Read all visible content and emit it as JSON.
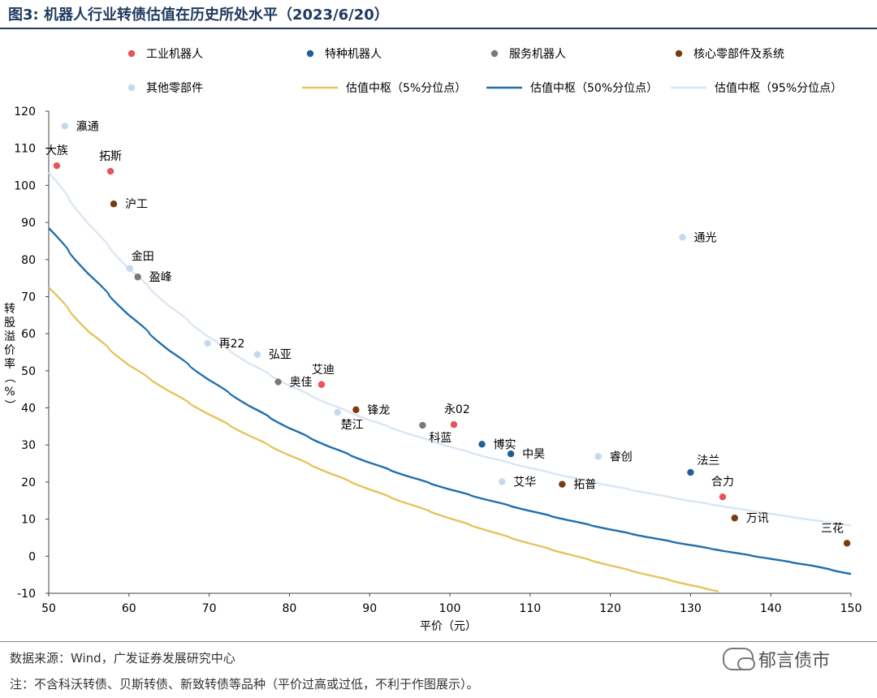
{
  "header": {
    "title": "图3:  机器人行业转债估值在历史所处水平（2023/6/20）"
  },
  "footer": {
    "source": "数据来源：Wind，广发证券发展研究中心",
    "note": "注：不含科沃转债、贝斯转债、新致转债等品种（平价过高或过低，不利于作图展示）。",
    "watermark": "郁言债市"
  },
  "chart_data": {
    "type": "scatter",
    "xlabel": "平价（元）",
    "ylabel": "转股溢价率（%）",
    "xlim": [
      50,
      150
    ],
    "ylim": [
      -10,
      120
    ],
    "xticks": [
      50,
      60,
      70,
      80,
      90,
      100,
      110,
      120,
      130,
      140,
      150
    ],
    "yticks": [
      -10,
      0,
      10,
      20,
      30,
      40,
      50,
      60,
      70,
      80,
      90,
      100,
      110,
      120
    ],
    "grid": false,
    "legend_position": "top",
    "categories": [
      {
        "name": "工业机器人",
        "color": "#e8545a"
      },
      {
        "name": "特种机器人",
        "color": "#1f5f99"
      },
      {
        "name": "服务机器人",
        "color": "#7a7a7a"
      },
      {
        "name": "核心零部件及系统",
        "color": "#7b3a10"
      },
      {
        "name": "其他零部件",
        "color": "#c5d9ee"
      }
    ],
    "curves": [
      {
        "name": "估值中枢（5%分位点）",
        "color": "#e6c35c",
        "x": [
          50,
          55,
          60,
          65,
          70,
          75,
          80,
          85,
          90,
          95,
          100,
          105,
          110,
          115,
          120,
          125,
          130,
          133.5
        ],
        "y": [
          72.5,
          60.5,
          51.5,
          44.5,
          38.2,
          32.5,
          27.2,
          22.4,
          18,
          14,
          10.2,
          6.7,
          3.4,
          0.4,
          -2.5,
          -5.2,
          -7.8,
          -9.5
        ]
      },
      {
        "name": "估值中枢（50%分位点）",
        "color": "#1f6fae",
        "x": [
          50,
          55,
          60,
          65,
          70,
          75,
          80,
          85,
          90,
          95,
          100,
          105,
          110,
          115,
          120,
          125,
          130,
          135,
          140,
          145,
          150
        ],
        "y": [
          88.5,
          76,
          65,
          55.5,
          47.5,
          40.5,
          34.5,
          29.5,
          25.2,
          21.4,
          18,
          15,
          12.2,
          9.6,
          7.2,
          5,
          3,
          1.1,
          -0.7,
          -2.5,
          -4.8
        ]
      },
      {
        "name": "估值中枢（95%分位点）",
        "color": "#d9e6f3",
        "x": [
          50,
          55,
          60,
          65,
          70,
          75,
          80,
          85,
          90,
          95,
          100,
          105,
          110,
          115,
          120,
          125,
          130,
          135,
          140,
          145,
          150
        ],
        "y": [
          103.5,
          89.5,
          77.5,
          67.5,
          59,
          52,
          46,
          41,
          36.7,
          32.9,
          29.5,
          26.5,
          23.8,
          21.3,
          19,
          16.9,
          14.9,
          13.1,
          11.4,
          9.8,
          8.3
        ]
      }
    ],
    "points": [
      {
        "label": "瀛通",
        "x": 52,
        "y": 116,
        "cat": 4,
        "dx": 14,
        "dy": 5
      },
      {
        "label": "大族",
        "x": 51,
        "y": 105.3,
        "cat": 0,
        "dx": -14,
        "dy": -14
      },
      {
        "label": "拓斯",
        "x": 57.7,
        "y": 103.8,
        "cat": 0,
        "dx": -14,
        "dy": -14
      },
      {
        "label": "沪工",
        "x": 58.1,
        "y": 95,
        "cat": 3,
        "dx": 14,
        "dy": 5
      },
      {
        "label": "金田",
        "x": 60.1,
        "y": 77.6,
        "cat": 4,
        "dx": 2,
        "dy": -10
      },
      {
        "label": "盈峰",
        "x": 61.1,
        "y": 75.3,
        "cat": 2,
        "dx": 14,
        "dy": 5
      },
      {
        "label": "再22",
        "x": 69.8,
        "y": 57.4,
        "cat": 4,
        "dx": 14,
        "dy": 5
      },
      {
        "label": "弘亚",
        "x": 76,
        "y": 54.4,
        "cat": 4,
        "dx": 14,
        "dy": 5
      },
      {
        "label": "奥佳",
        "x": 78.6,
        "y": 47,
        "cat": 2,
        "dx": 14,
        "dy": 5
      },
      {
        "label": "艾迪",
        "x": 84,
        "y": 46.3,
        "cat": 0,
        "dx": -12,
        "dy": -14
      },
      {
        "label": "锋龙",
        "x": 88.3,
        "y": 39.5,
        "cat": 3,
        "dx": 14,
        "dy": 5
      },
      {
        "label": "楚江",
        "x": 86,
        "y": 38.8,
        "cat": 4,
        "dx": 4,
        "dy": 20
      },
      {
        "label": "永02",
        "x": 100.5,
        "y": 35.5,
        "cat": 0,
        "dx": -12,
        "dy": -14
      },
      {
        "label": "科蓝",
        "x": 96.6,
        "y": 35.3,
        "cat": 2,
        "dx": 8,
        "dy": 20
      },
      {
        "label": "博实",
        "x": 104,
        "y": 30.2,
        "cat": 1,
        "dx": 14,
        "dy": 5
      },
      {
        "label": "中昊",
        "x": 107.6,
        "y": 27.6,
        "cat": 1,
        "dx": 14,
        "dy": 5
      },
      {
        "label": "睿创",
        "x": 118.5,
        "y": 26.9,
        "cat": 4,
        "dx": 14,
        "dy": 5
      },
      {
        "label": "艾华",
        "x": 106.5,
        "y": 20.1,
        "cat": 4,
        "dx": 14,
        "dy": 5
      },
      {
        "label": "拓普",
        "x": 114,
        "y": 19.4,
        "cat": 3,
        "dx": 14,
        "dy": 5
      },
      {
        "label": "通光",
        "x": 129,
        "y": 86,
        "cat": 4,
        "dx": 14,
        "dy": 5
      },
      {
        "label": "法兰",
        "x": 130,
        "y": 22.6,
        "cat": 1,
        "dx": 8,
        "dy": -10
      },
      {
        "label": "合力",
        "x": 134,
        "y": 16,
        "cat": 0,
        "dx": -14,
        "dy": -14
      },
      {
        "label": "万讯",
        "x": 135.5,
        "y": 10.3,
        "cat": 3,
        "dx": 14,
        "dy": 5
      },
      {
        "label": "三花",
        "x": 149.5,
        "y": 3.5,
        "cat": 3,
        "dx": -32,
        "dy": -14
      }
    ]
  }
}
